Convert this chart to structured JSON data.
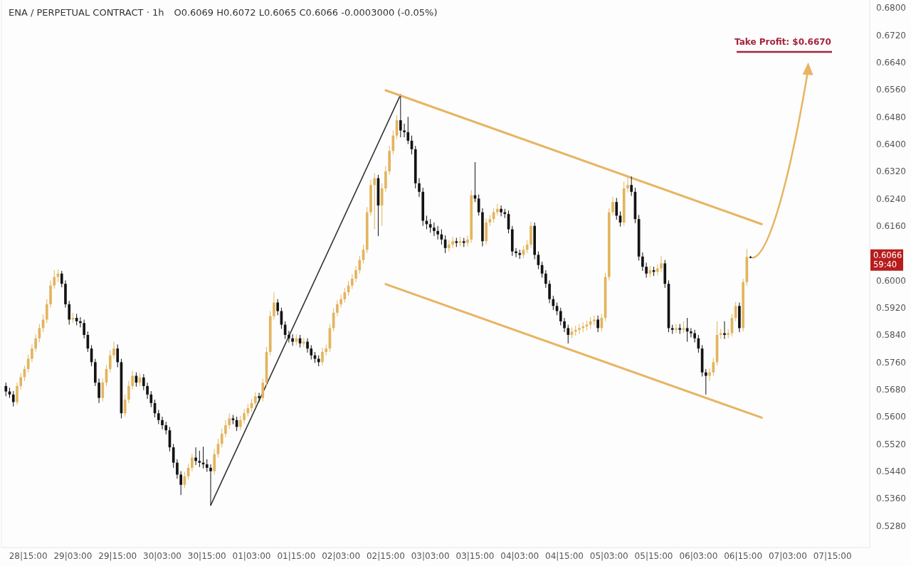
{
  "chart_data": {
    "type": "candlestick",
    "title": "ENA / PERPETUAL CONTRACT · 1h",
    "subtitle": "O0.6069 H0.6072 L0.6065 C0.6066   -0.0003000 (-0.05%)",
    "categories": [
      null,
      null,
      null,
      null,
      null,
      null,
      "28|15:00",
      null,
      null,
      null,
      null,
      null,
      null,
      null,
      null,
      null,
      null,
      null,
      "29|03:00",
      null,
      null,
      null,
      null,
      null,
      null,
      null,
      null,
      null,
      null,
      null,
      "29|15:00",
      null,
      null,
      null,
      null,
      null,
      null,
      null,
      null,
      null,
      null,
      null,
      "30|03:00",
      null,
      null,
      null,
      null,
      null,
      null,
      null,
      null,
      null,
      null,
      null,
      "30|15:00",
      null,
      null,
      null,
      null,
      null,
      null,
      null,
      null,
      null,
      null,
      null,
      "01|03:00",
      null,
      null,
      null,
      null,
      null,
      null,
      null,
      null,
      null,
      null,
      null,
      "01|15:00",
      null,
      null,
      null,
      null,
      null,
      null,
      null,
      null,
      null,
      null,
      null,
      "02|03:00",
      null,
      null,
      null,
      null,
      null,
      null,
      null,
      null,
      null,
      null,
      null,
      "02|15:00",
      null,
      null,
      null,
      null,
      null,
      null,
      null,
      null,
      null,
      null,
      null,
      "03|03:00",
      null,
      null,
      null,
      null,
      null,
      null,
      null,
      null,
      null,
      null,
      null,
      "03|15:00",
      null,
      null,
      null,
      null,
      null,
      null,
      null,
      null,
      null,
      null,
      null,
      "04|03:00",
      null,
      null,
      null,
      null,
      null,
      null,
      null,
      null,
      null,
      null,
      null,
      "04|15:00",
      null,
      null,
      null,
      null,
      null,
      null,
      null,
      null,
      null,
      null,
      null,
      "05|03:00",
      null,
      null,
      null,
      null,
      null,
      null,
      null,
      null,
      null,
      null,
      null,
      "05|15:00",
      null,
      null,
      null,
      null,
      null,
      null,
      null,
      null,
      null,
      null,
      null,
      "06|03:00",
      null,
      null,
      null,
      null,
      null,
      null,
      null,
      null,
      null,
      null,
      null,
      "06|15:00",
      null,
      null,
      null,
      null,
      null,
      null,
      null,
      null,
      null,
      null,
      null,
      "07|03:00",
      null,
      null,
      null,
      null,
      null,
      null,
      null,
      null,
      null,
      null,
      null,
      "07|15:00",
      null,
      null,
      null,
      null,
      null,
      null,
      null,
      null,
      null
    ],
    "ylim": [
      0.5216,
      0.6823
    ],
    "yticks": [
      {
        "value": 0.528,
        "label": "0.5280"
      },
      {
        "value": 0.536,
        "label": "0.5360"
      },
      {
        "value": 0.544,
        "label": "0.5440"
      },
      {
        "value": 0.552,
        "label": "0.5520"
      },
      {
        "value": 0.56,
        "label": "0.5600"
      },
      {
        "value": 0.568,
        "label": "0.5680"
      },
      {
        "value": 0.576,
        "label": "0.5760"
      },
      {
        "value": 0.584,
        "label": "0.5840"
      },
      {
        "value": 0.592,
        "label": "0.5920"
      },
      {
        "value": 0.6,
        "label": "0.6000"
      },
      {
        "value": 0.616,
        "label": "0.6160"
      },
      {
        "value": 0.624,
        "label": "0.6240"
      },
      {
        "value": 0.632,
        "label": "0.6320"
      },
      {
        "value": 0.64,
        "label": "0.6400"
      },
      {
        "value": 0.648,
        "label": "0.6480"
      },
      {
        "value": 0.656,
        "label": "0.6560"
      },
      {
        "value": 0.664,
        "label": "0.6640"
      },
      {
        "value": 0.672,
        "label": "0.6720"
      },
      {
        "value": 0.68,
        "label": "0.6800"
      }
    ],
    "ohlc": [
      [
        0.569,
        0.57,
        0.566,
        0.5674
      ],
      [
        0.5674,
        0.5685,
        0.5655,
        0.5665
      ],
      [
        0.5665,
        0.5675,
        0.563,
        0.5643
      ],
      [
        0.5643,
        0.57,
        0.5635,
        0.569
      ],
      [
        0.569,
        0.5728,
        0.568,
        0.5716
      ],
      [
        0.5716,
        0.575,
        0.5705,
        0.574
      ],
      [
        0.574,
        0.5782,
        0.573,
        0.577
      ],
      [
        0.577,
        0.5812,
        0.576,
        0.58
      ],
      [
        0.58,
        0.5842,
        0.579,
        0.583
      ],
      [
        0.583,
        0.5872,
        0.5818,
        0.586
      ],
      [
        0.586,
        0.59,
        0.5848,
        0.5885
      ],
      [
        0.5885,
        0.5945,
        0.5875,
        0.593
      ],
      [
        0.593,
        0.6,
        0.592,
        0.5985
      ],
      [
        0.5985,
        0.603,
        0.5975,
        0.601
      ],
      [
        0.601,
        0.6032,
        0.5995,
        0.602
      ],
      [
        0.602,
        0.6028,
        0.598,
        0.599
      ],
      [
        0.599,
        0.6,
        0.592,
        0.593
      ],
      [
        0.593,
        0.594,
        0.587,
        0.5885
      ],
      [
        0.5885,
        0.5905,
        0.5875,
        0.589
      ],
      [
        0.589,
        0.5902,
        0.5868,
        0.588
      ],
      [
        0.588,
        0.5892,
        0.5862,
        0.5875
      ],
      [
        0.5875,
        0.5885,
        0.583,
        0.584
      ],
      [
        0.584,
        0.585,
        0.579,
        0.58
      ],
      [
        0.58,
        0.581,
        0.5748,
        0.576
      ],
      [
        0.576,
        0.577,
        0.569,
        0.57
      ],
      [
        0.57,
        0.5712,
        0.564,
        0.5655
      ],
      [
        0.5655,
        0.5712,
        0.5645,
        0.57
      ],
      [
        0.57,
        0.5752,
        0.569,
        0.574
      ],
      [
        0.574,
        0.5795,
        0.573,
        0.578
      ],
      [
        0.578,
        0.582,
        0.577,
        0.58
      ],
      [
        0.58,
        0.5812,
        0.5745,
        0.576
      ],
      [
        0.576,
        0.577,
        0.5595,
        0.561
      ],
      [
        0.561,
        0.5665,
        0.56,
        0.565
      ],
      [
        0.565,
        0.5705,
        0.564,
        0.569
      ],
      [
        0.569,
        0.5735,
        0.568,
        0.572
      ],
      [
        0.572,
        0.573,
        0.5688,
        0.57
      ],
      [
        0.57,
        0.5728,
        0.569,
        0.5715
      ],
      [
        0.5715,
        0.5725,
        0.5678,
        0.569
      ],
      [
        0.569,
        0.57,
        0.5652,
        0.5665
      ],
      [
        0.5665,
        0.5675,
        0.5628,
        0.564
      ],
      [
        0.564,
        0.565,
        0.5598,
        0.561
      ],
      [
        0.561,
        0.562,
        0.5578,
        0.559
      ],
      [
        0.559,
        0.56,
        0.5563,
        0.5575
      ],
      [
        0.5575,
        0.5585,
        0.5548,
        0.556
      ],
      [
        0.556,
        0.557,
        0.5498,
        0.551
      ],
      [
        0.551,
        0.552,
        0.545,
        0.5465
      ],
      [
        0.5465,
        0.5475,
        0.5418,
        0.543
      ],
      [
        0.543,
        0.544,
        0.537,
        0.54
      ],
      [
        0.54,
        0.5438,
        0.539,
        0.5425
      ],
      [
        0.5425,
        0.5462,
        0.5415,
        0.545
      ],
      [
        0.545,
        0.5492,
        0.544,
        0.548
      ],
      [
        0.548,
        0.551,
        0.5458,
        0.547
      ],
      [
        0.547,
        0.55,
        0.5452,
        0.5465
      ],
      [
        0.5465,
        0.5512,
        0.5448,
        0.546
      ],
      [
        0.546,
        0.5475,
        0.5438,
        0.545
      ],
      [
        0.545,
        0.546,
        0.534,
        0.544
      ],
      [
        0.544,
        0.5505,
        0.543,
        0.549
      ],
      [
        0.549,
        0.5535,
        0.548,
        0.552
      ],
      [
        0.552,
        0.5565,
        0.551,
        0.555
      ],
      [
        0.555,
        0.559,
        0.554,
        0.5575
      ],
      [
        0.5575,
        0.561,
        0.5565,
        0.5595
      ],
      [
        0.5595,
        0.5605,
        0.5578,
        0.559
      ],
      [
        0.559,
        0.56,
        0.5558,
        0.557
      ],
      [
        0.557,
        0.5602,
        0.556,
        0.559
      ],
      [
        0.559,
        0.5622,
        0.558,
        0.561
      ],
      [
        0.561,
        0.5638,
        0.56,
        0.5625
      ],
      [
        0.5625,
        0.5652,
        0.5615,
        0.564
      ],
      [
        0.564,
        0.5672,
        0.563,
        0.566
      ],
      [
        0.566,
        0.567,
        0.5643,
        0.5655
      ],
      [
        0.5655,
        0.5712,
        0.5645,
        0.57
      ],
      [
        0.57,
        0.5805,
        0.569,
        0.579
      ],
      [
        0.579,
        0.591,
        0.578,
        0.5895
      ],
      [
        0.5895,
        0.5965,
        0.5885,
        0.5935
      ],
      [
        0.5935,
        0.5945,
        0.5898,
        0.591
      ],
      [
        0.591,
        0.592,
        0.5858,
        0.587
      ],
      [
        0.587,
        0.588,
        0.5828,
        0.584
      ],
      [
        0.584,
        0.5852,
        0.5818,
        0.583
      ],
      [
        0.583,
        0.5842,
        0.5808,
        0.582
      ],
      [
        0.582,
        0.5842,
        0.581,
        0.583
      ],
      [
        0.583,
        0.584,
        0.5803,
        0.5815
      ],
      [
        0.5815,
        0.5832,
        0.5805,
        0.582
      ],
      [
        0.582,
        0.583,
        0.5788,
        0.58
      ],
      [
        0.58,
        0.581,
        0.5768,
        0.578
      ],
      [
        0.578,
        0.579,
        0.5758,
        0.577
      ],
      [
        0.577,
        0.578,
        0.5748,
        0.576
      ],
      [
        0.576,
        0.5802,
        0.575,
        0.579
      ],
      [
        0.579,
        0.5812,
        0.578,
        0.58
      ],
      [
        0.58,
        0.5872,
        0.579,
        0.586
      ],
      [
        0.586,
        0.5918,
        0.585,
        0.5905
      ],
      [
        0.5905,
        0.5942,
        0.5895,
        0.593
      ],
      [
        0.593,
        0.5958,
        0.592,
        0.5945
      ],
      [
        0.5945,
        0.5978,
        0.5935,
        0.5965
      ],
      [
        0.5965,
        0.5998,
        0.5955,
        0.5985
      ],
      [
        0.5985,
        0.6018,
        0.5975,
        0.6005
      ],
      [
        0.6005,
        0.6042,
        0.5995,
        0.603
      ],
      [
        0.603,
        0.6072,
        0.602,
        0.606
      ],
      [
        0.606,
        0.6105,
        0.605,
        0.609
      ],
      [
        0.609,
        0.6215,
        0.608,
        0.62
      ],
      [
        0.62,
        0.6295,
        0.619,
        0.628
      ],
      [
        0.628,
        0.6315,
        0.615,
        0.63
      ],
      [
        0.63,
        0.631,
        0.613,
        0.622
      ],
      [
        0.622,
        0.6285,
        0.616,
        0.627
      ],
      [
        0.627,
        0.6335,
        0.626,
        0.632
      ],
      [
        0.632,
        0.6395,
        0.631,
        0.638
      ],
      [
        0.638,
        0.644,
        0.637,
        0.6425
      ],
      [
        0.6425,
        0.6485,
        0.6415,
        0.647
      ],
      [
        0.647,
        0.6541,
        0.642,
        0.644
      ],
      [
        0.644,
        0.646,
        0.642,
        0.6435
      ],
      [
        0.6435,
        0.648,
        0.64,
        0.641
      ],
      [
        0.641,
        0.6425,
        0.637,
        0.6385
      ],
      [
        0.6385,
        0.6395,
        0.627,
        0.6285
      ],
      [
        0.6285,
        0.63,
        0.6245,
        0.626
      ],
      [
        0.626,
        0.6272,
        0.616,
        0.6175
      ],
      [
        0.6175,
        0.619,
        0.615,
        0.6165
      ],
      [
        0.6165,
        0.618,
        0.614,
        0.6155
      ],
      [
        0.6155,
        0.617,
        0.613,
        0.6145
      ],
      [
        0.6145,
        0.616,
        0.612,
        0.6135
      ],
      [
        0.6135,
        0.615,
        0.6105,
        0.612
      ],
      [
        0.612,
        0.6132,
        0.608,
        0.6095
      ],
      [
        0.6095,
        0.6118,
        0.6085,
        0.6105
      ],
      [
        0.6105,
        0.6128,
        0.6095,
        0.6115
      ],
      [
        0.6115,
        0.6125,
        0.6098,
        0.611
      ],
      [
        0.611,
        0.6128,
        0.61,
        0.6115
      ],
      [
        0.6115,
        0.6125,
        0.6098,
        0.611
      ],
      [
        0.611,
        0.6132,
        0.61,
        0.612
      ],
      [
        0.612,
        0.6265,
        0.611,
        0.625
      ],
      [
        0.625,
        0.6347,
        0.623,
        0.624
      ],
      [
        0.624,
        0.6252,
        0.619,
        0.62
      ],
      [
        0.62,
        0.6212,
        0.61,
        0.6115
      ],
      [
        0.6115,
        0.6182,
        0.6105,
        0.617
      ],
      [
        0.617,
        0.6192,
        0.616,
        0.618
      ],
      [
        0.618,
        0.6212,
        0.617,
        0.62
      ],
      [
        0.62,
        0.6225,
        0.619,
        0.621
      ],
      [
        0.621,
        0.622,
        0.6188,
        0.62
      ],
      [
        0.62,
        0.621,
        0.6183,
        0.6195
      ],
      [
        0.6195,
        0.6205,
        0.6138,
        0.615
      ],
      [
        0.615,
        0.616,
        0.6072,
        0.6085
      ],
      [
        0.6085,
        0.6095,
        0.6068,
        0.608
      ],
      [
        0.608,
        0.609,
        0.6063,
        0.6075
      ],
      [
        0.6075,
        0.6102,
        0.6065,
        0.609
      ],
      [
        0.609,
        0.6118,
        0.608,
        0.6105
      ],
      [
        0.6105,
        0.6172,
        0.6095,
        0.616
      ],
      [
        0.616,
        0.617,
        0.6062,
        0.6075
      ],
      [
        0.6075,
        0.6085,
        0.6033,
        0.6045
      ],
      [
        0.6045,
        0.6055,
        0.6008,
        0.602
      ],
      [
        0.602,
        0.603,
        0.5978,
        0.599
      ],
      [
        0.599,
        0.6,
        0.5933,
        0.5945
      ],
      [
        0.5945,
        0.5955,
        0.5913,
        0.5925
      ],
      [
        0.5925,
        0.5935,
        0.5898,
        0.591
      ],
      [
        0.591,
        0.592,
        0.5868,
        0.588
      ],
      [
        0.588,
        0.589,
        0.5848,
        0.586
      ],
      [
        0.586,
        0.587,
        0.5815,
        0.584
      ],
      [
        0.584,
        0.5862,
        0.583,
        0.585
      ],
      [
        0.585,
        0.5867,
        0.5838,
        0.5855
      ],
      [
        0.5855,
        0.5872,
        0.5843,
        0.586
      ],
      [
        0.586,
        0.5877,
        0.5848,
        0.5865
      ],
      [
        0.5865,
        0.5882,
        0.5853,
        0.587
      ],
      [
        0.587,
        0.5892,
        0.5858,
        0.588
      ],
      [
        0.588,
        0.5897,
        0.5868,
        0.5885
      ],
      [
        0.5885,
        0.5897,
        0.5848,
        0.586
      ],
      [
        0.586,
        0.5902,
        0.585,
        0.589
      ],
      [
        0.589,
        0.6022,
        0.588,
        0.601
      ],
      [
        0.601,
        0.6212,
        0.6,
        0.62
      ],
      [
        0.62,
        0.6245,
        0.619,
        0.623
      ],
      [
        0.623,
        0.6242,
        0.6178,
        0.619
      ],
      [
        0.619,
        0.6202,
        0.6158,
        0.617
      ],
      [
        0.617,
        0.629,
        0.616,
        0.627
      ],
      [
        0.627,
        0.6305,
        0.6258,
        0.628
      ],
      [
        0.628,
        0.6305,
        0.6248,
        0.626
      ],
      [
        0.626,
        0.6272,
        0.6168,
        0.618
      ],
      [
        0.618,
        0.6192,
        0.6058,
        0.607
      ],
      [
        0.607,
        0.6082,
        0.6028,
        0.604
      ],
      [
        0.604,
        0.6052,
        0.6008,
        0.602
      ],
      [
        0.602,
        0.6042,
        0.601,
        0.603
      ],
      [
        0.603,
        0.604,
        0.6013,
        0.6025
      ],
      [
        0.6025,
        0.6047,
        0.6015,
        0.6035
      ],
      [
        0.6035,
        0.6072,
        0.6025,
        0.605
      ],
      [
        0.605,
        0.606,
        0.5978,
        0.599
      ],
      [
        0.599,
        0.6,
        0.5848,
        0.586
      ],
      [
        0.586,
        0.587,
        0.5843,
        0.5855
      ],
      [
        0.5855,
        0.5872,
        0.5845,
        0.586
      ],
      [
        0.586,
        0.5872,
        0.5843,
        0.5855
      ],
      [
        0.5855,
        0.588,
        0.5845,
        0.586
      ],
      [
        0.586,
        0.589,
        0.582,
        0.585
      ],
      [
        0.585,
        0.586,
        0.5833,
        0.5845
      ],
      [
        0.5845,
        0.5855,
        0.5818,
        0.583
      ],
      [
        0.583,
        0.584,
        0.5788,
        0.58
      ],
      [
        0.58,
        0.581,
        0.5718,
        0.573
      ],
      [
        0.573,
        0.574,
        0.5665,
        0.572
      ],
      [
        0.572,
        0.5742,
        0.5705,
        0.573
      ],
      [
        0.573,
        0.5772,
        0.572,
        0.576
      ],
      [
        0.576,
        0.588,
        0.575,
        0.584
      ],
      [
        0.584,
        0.5857,
        0.5828,
        0.5845
      ],
      [
        0.5845,
        0.588,
        0.5828,
        0.584
      ],
      [
        0.584,
        0.5857,
        0.583,
        0.5845
      ],
      [
        0.5845,
        0.5902,
        0.5835,
        0.589
      ],
      [
        0.589,
        0.5937,
        0.588,
        0.5925
      ],
      [
        0.5925,
        0.5935,
        0.5848,
        0.586
      ],
      [
        0.586,
        0.6005,
        0.585,
        0.5995
      ],
      [
        0.5995,
        0.6092,
        0.5985,
        0.6069
      ],
      [
        0.6069,
        0.6072,
        0.6065,
        0.6066
      ],
      null,
      null,
      null,
      null,
      null,
      null,
      null,
      null,
      null,
      null,
      null,
      null,
      null,
      null,
      null,
      null,
      null,
      null,
      null,
      null,
      null,
      null,
      null,
      null,
      null,
      null,
      null,
      null,
      null,
      null,
      null
    ],
    "colors": [
      "#131313",
      "#131313",
      "#131313",
      "#e3b45e",
      "#e3b45e",
      "#e3b45e",
      "#e3b45e",
      "#e3b45e",
      "#e3b45e",
      "#e3b45e",
      "#e3b45e",
      "#e3b45e",
      "#e3b45e",
      "#e3b45e",
      "#e3b45e",
      "#131313",
      "#131313",
      "#131313",
      "#e3b45e",
      "#131313",
      "#131313",
      "#131313",
      "#131313",
      "#131313",
      "#131313",
      "#131313",
      "#e3b45e",
      "#e3b45e",
      "#e3b45e",
      "#e3b45e",
      "#131313",
      "#131313",
      "#e3b45e",
      "#e3b45e",
      "#e3b45e",
      "#131313",
      "#e3b45e",
      "#131313",
      "#131313",
      "#131313",
      "#131313",
      "#131313",
      "#131313",
      "#131313",
      "#131313",
      "#131313",
      "#131313",
      "#131313",
      "#e3b45e",
      "#e3b45e",
      "#e3b45e",
      "#131313",
      "#131313",
      "#131313",
      "#131313",
      "#131313",
      "#e3b45e",
      "#e3b45e",
      "#e3b45e",
      "#e3b45e",
      "#e3b45e",
      "#131313",
      "#131313",
      "#e3b45e",
      "#e3b45e",
      "#e3b45e",
      "#e3b45e",
      "#e3b45e",
      "#131313",
      "#e3b45e",
      "#e3b45e",
      "#e3b45e",
      "#e3b45e",
      "#131313",
      "#131313",
      "#131313",
      "#131313",
      "#131313",
      "#e3b45e",
      "#131313",
      "#e3b45e",
      "#131313",
      "#131313",
      "#131313",
      "#131313",
      "#e3b45e",
      "#e3b45e",
      "#e3b45e",
      "#e3b45e",
      "#e3b45e",
      "#e3b45e",
      "#e3b45e",
      "#e3b45e",
      "#e3b45e",
      "#e3b45e",
      "#e3b45e",
      "#e3b45e",
      "#e3b45e",
      "#e3b45e",
      "#e3b45e",
      "#131313",
      "#e3b45e",
      "#e3b45e",
      "#e3b45e",
      "#e3b45e",
      "#e3b45e",
      "#131313",
      "#131313",
      "#131313",
      "#131313",
      "#131313",
      "#131313",
      "#131313",
      "#131313",
      "#131313",
      "#131313",
      "#131313",
      "#131313",
      "#131313",
      "#e3b45e",
      "#e3b45e",
      "#131313",
      "#e3b45e",
      "#131313",
      "#e3b45e",
      "#e3b45e",
      "#131313",
      "#131313",
      "#131313",
      "#e3b45e",
      "#e3b45e",
      "#e3b45e",
      "#e3b45e",
      "#131313",
      "#131313",
      "#131313",
      "#131313",
      "#131313",
      "#131313",
      "#e3b45e",
      "#e3b45e",
      "#e3b45e",
      "#131313",
      "#131313",
      "#131313",
      "#131313",
      "#131313",
      "#131313",
      "#131313",
      "#131313",
      "#131313",
      "#131313",
      "#e3b45e",
      "#e3b45e",
      "#e3b45e",
      "#e3b45e",
      "#e3b45e",
      "#e3b45e",
      "#e3b45e",
      "#131313",
      "#e3b45e",
      "#e3b45e",
      "#e3b45e",
      "#e3b45e",
      "#131313",
      "#131313",
      "#e3b45e",
      "#e3b45e",
      "#131313",
      "#131313",
      "#131313",
      "#131313",
      "#131313",
      "#e3b45e",
      "#131313",
      "#e3b45e",
      "#e3b45e",
      "#131313",
      "#131313",
      "#131313",
      "#e3b45e",
      "#131313",
      "#e3b45e",
      "#131313",
      "#131313",
      "#131313",
      "#131313",
      "#131313",
      "#131313",
      "#e3b45e",
      "#e3b45e",
      "#e3b45e",
      "#e3b45e",
      "#131313",
      "#e3b45e",
      "#e3b45e",
      "#e3b45e",
      "#131313",
      "#e3b45e",
      "#e3b45e",
      "#131313",
      null,
      null,
      null,
      null,
      null,
      null,
      null,
      null,
      null,
      null,
      null,
      null,
      null,
      null,
      null,
      null,
      null,
      null,
      null,
      null,
      null,
      null,
      null,
      null,
      null,
      null,
      null,
      null,
      null,
      null,
      null
    ],
    "series": [
      {
        "type": "line",
        "color": "#333333",
        "values": [
          null,
          null,
          null,
          null,
          null,
          null,
          null,
          null,
          null,
          null,
          null,
          null,
          null,
          null,
          null,
          null,
          null,
          null,
          null,
          null,
          null,
          null,
          null,
          null,
          null,
          null,
          null,
          null,
          null,
          null,
          null,
          null,
          null,
          null,
          null,
          null,
          null,
          null,
          null,
          null,
          null,
          null,
          null,
          null,
          null,
          null,
          null,
          null,
          null,
          null,
          null,
          null,
          null,
          null,
          null,
          0.534,
          null,
          null,
          null,
          null,
          null,
          null,
          null,
          null,
          null,
          null,
          null,
          null,
          null,
          null,
          null,
          null,
          null,
          null,
          null,
          null,
          null,
          null,
          null,
          null,
          null,
          null,
          null,
          null,
          null,
          null,
          null,
          null,
          null,
          null,
          null,
          null,
          null,
          null,
          null,
          null,
          null,
          null,
          null,
          null,
          null,
          null,
          null,
          null,
          null,
          null,
          0.6545,
          null,
          null,
          null,
          null,
          null,
          null,
          null,
          null,
          null,
          null,
          null,
          null,
          null,
          null,
          null,
          null,
          null,
          null,
          null,
          null,
          null,
          null,
          null,
          null,
          null,
          null,
          null,
          null,
          null,
          null,
          null,
          null,
          null,
          null,
          null,
          null,
          null,
          null,
          null,
          null,
          null,
          null,
          null,
          null,
          null,
          null,
          null,
          null,
          null,
          null,
          null,
          null,
          null,
          null,
          null,
          null,
          null,
          null,
          null,
          null,
          null,
          null,
          null,
          null,
          null,
          null,
          null,
          null,
          null,
          null,
          null,
          null,
          null,
          null,
          null,
          null,
          null,
          null,
          null,
          null,
          null,
          null,
          null,
          null,
          null,
          null,
          null,
          null,
          null,
          null,
          null,
          null,
          null,
          null,
          null,
          null,
          null,
          null,
          null,
          null,
          null,
          null,
          null,
          null,
          null,
          null,
          null,
          null,
          null,
          null,
          null,
          null,
          null,
          null,
          null,
          null,
          null,
          null,
          null,
          null,
          null,
          null,
          null,
          null,
          null
        ]
      },
      {
        "type": "line",
        "color": "#e8b462",
        "values": [
          null,
          null,
          null,
          null,
          null,
          null,
          null,
          null,
          null,
          null,
          null,
          null,
          null,
          null,
          null,
          null,
          null,
          null,
          null,
          null,
          null,
          null,
          null,
          null,
          null,
          null,
          null,
          null,
          null,
          null,
          null,
          null,
          null,
          null,
          null,
          null,
          null,
          null,
          null,
          null,
          null,
          null,
          null,
          null,
          null,
          null,
          null,
          null,
          null,
          null,
          null,
          null,
          null,
          null,
          null,
          null,
          null,
          null,
          null,
          null,
          null,
          null,
          null,
          null,
          null,
          null,
          null,
          null,
          null,
          null,
          null,
          null,
          null,
          null,
          null,
          null,
          null,
          null,
          null,
          null,
          null,
          null,
          null,
          null,
          null,
          null,
          null,
          null,
          null,
          null,
          null,
          null,
          null,
          null,
          null,
          null,
          null,
          null,
          null,
          null,
          null,
          null,
          0.6558,
          null,
          null,
          null,
          null,
          null,
          null,
          null,
          null,
          null,
          null,
          null,
          null,
          null,
          null,
          null,
          null,
          null,
          null,
          null,
          null,
          null,
          null,
          null,
          null,
          null,
          null,
          null,
          null,
          null,
          null,
          null,
          null,
          null,
          null,
          null,
          null,
          null,
          null,
          null,
          null,
          null,
          null,
          null,
          null,
          null,
          null,
          null,
          null,
          null,
          null,
          null,
          null,
          null,
          null,
          null,
          null,
          null,
          null,
          null,
          null,
          null,
          null,
          null,
          null,
          null,
          null,
          null,
          null,
          null,
          null,
          null,
          null,
          null,
          null,
          null,
          null,
          null,
          null,
          null,
          null,
          null,
          null,
          null,
          null,
          null,
          null,
          null,
          null,
          null,
          null,
          null,
          null,
          null,
          null,
          null,
          null,
          null,
          null,
          null,
          null,
          0.6165,
          null,
          null,
          null,
          null,
          null,
          null,
          null,
          null,
          null,
          null,
          null,
          null,
          null,
          null,
          null,
          null,
          null,
          null,
          null,
          null,
          null,
          null,
          null,
          null,
          null,
          null,
          null,
          null
        ]
      },
      {
        "type": "line",
        "color": "#e8b462",
        "values": [
          null,
          null,
          null,
          null,
          null,
          null,
          null,
          null,
          null,
          null,
          null,
          null,
          null,
          null,
          null,
          null,
          null,
          null,
          null,
          null,
          null,
          null,
          null,
          null,
          null,
          null,
          null,
          null,
          null,
          null,
          null,
          null,
          null,
          null,
          null,
          null,
          null,
          null,
          null,
          null,
          null,
          null,
          null,
          null,
          null,
          null,
          null,
          null,
          null,
          null,
          null,
          null,
          null,
          null,
          null,
          null,
          null,
          null,
          null,
          null,
          null,
          null,
          null,
          null,
          null,
          null,
          null,
          null,
          null,
          null,
          null,
          null,
          null,
          null,
          null,
          null,
          null,
          null,
          null,
          null,
          null,
          null,
          null,
          null,
          null,
          null,
          null,
          null,
          null,
          null,
          null,
          null,
          null,
          null,
          null,
          null,
          null,
          null,
          null,
          null,
          null,
          null,
          0.5989,
          null,
          null,
          null,
          null,
          null,
          null,
          null,
          null,
          null,
          null,
          null,
          null,
          null,
          null,
          null,
          null,
          null,
          null,
          null,
          null,
          null,
          null,
          null,
          null,
          null,
          null,
          null,
          null,
          null,
          null,
          null,
          null,
          null,
          null,
          null,
          null,
          null,
          null,
          null,
          null,
          null,
          null,
          null,
          null,
          null,
          null,
          null,
          null,
          null,
          null,
          null,
          null,
          null,
          null,
          null,
          null,
          null,
          null,
          null,
          null,
          null,
          null,
          null,
          null,
          null,
          null,
          null,
          null,
          null,
          null,
          null,
          null,
          null,
          null,
          null,
          null,
          null,
          null,
          null,
          null,
          null,
          null,
          null,
          null,
          null,
          null,
          null,
          null,
          null,
          null,
          null,
          null,
          null,
          null,
          null,
          null,
          null,
          null,
          null,
          null,
          0.5597,
          null,
          null,
          null,
          null,
          null,
          null,
          null,
          null,
          null,
          null,
          null,
          null,
          null,
          null,
          null,
          null,
          null,
          null,
          null,
          null,
          null,
          null,
          null,
          null,
          null,
          null,
          null,
          null
        ]
      }
    ],
    "annotations": [
      "Take Profit: $0.6670",
      "0.6066\n59:40"
    ]
  }
}
